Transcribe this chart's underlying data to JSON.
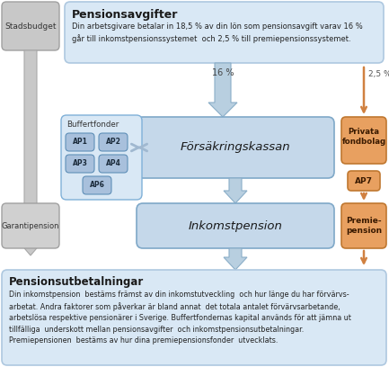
{
  "bg_color": "#ffffff",
  "title_top": "Pensionsavgifter",
  "text_top": "Din arbetsgivare betalar in 18,5 % av din lön som pensionsavgift varav 16 %\ngår till inkomstpensionssystemet  och 2,5 % till premiepensionssystemet.",
  "stadsbudget_label": "Stadsbudget",
  "garantipension_label": "Garantipension",
  "forsakringskassan_label": "Försäkringskassan",
  "inkomstpension_label": "Inkomstpension",
  "buffertfonder_label": "Buffertfonder",
  "ap_labels": [
    "AP1",
    "AP2",
    "AP3",
    "AP4",
    "AP6"
  ],
  "privata_label": "Privata\nfondbolag",
  "ap7_label": "AP7",
  "premiepension_label": "Premie-\npension",
  "arrow_16_label": "16 %",
  "arrow_25_label": "2,5 %",
  "title_bottom": "Pensionsutbetalningar",
  "bottom_text": "Din inkomstpension  bestäms främst av din inkomstutveckling  och hur länge du har förvärvs-\narbetat. Andra faktorer som påverkar är bland annat  det totala antalet förvärvsarbetande,\narbetslösa respektive pensionärer i Sverige. Buffertfondernas kapital används för att jämna ut\ntillfälliga  underskott mellan pensionsavgifter  och inkomstpensionsutbetalningar.\nPremiepensionen  bestäms av hur dina premiepensionsfonder  utvecklats.",
  "box_top_bg": "#d9e8f5",
  "box_top_border": "#aec8e0",
  "stadsbudget_bg": "#c8c8c8",
  "stadsbudget_border": "#a0a0a0",
  "garantipension_bg": "#d0d0d0",
  "garantipension_border": "#a0a0a0",
  "forsakringskassan_bg": "#c5d8ea",
  "forsakringskassan_border": "#7fa8c8",
  "inkomstpension_bg": "#c5d8ea",
  "inkomstpension_border": "#7fa8c8",
  "buffertfonder_bg": "#d9e8f5",
  "buffertfonder_border": "#7fb0d8",
  "ap_box_bg": "#a8c0dc",
  "ap_box_border": "#6090b8",
  "privata_bg": "#e8a060",
  "privata_border": "#c07830",
  "ap7_bg": "#e8a060",
  "ap7_border": "#c07830",
  "premiepension_bg": "#e8a060",
  "premiepension_border": "#c07830",
  "box_bottom_bg": "#d9e8f5",
  "box_bottom_border": "#aec8e0",
  "arrow_blue_color": "#a0b8d0",
  "arrow_orange_color": "#d08040",
  "arrow_gray_color": "#b0b0b0"
}
